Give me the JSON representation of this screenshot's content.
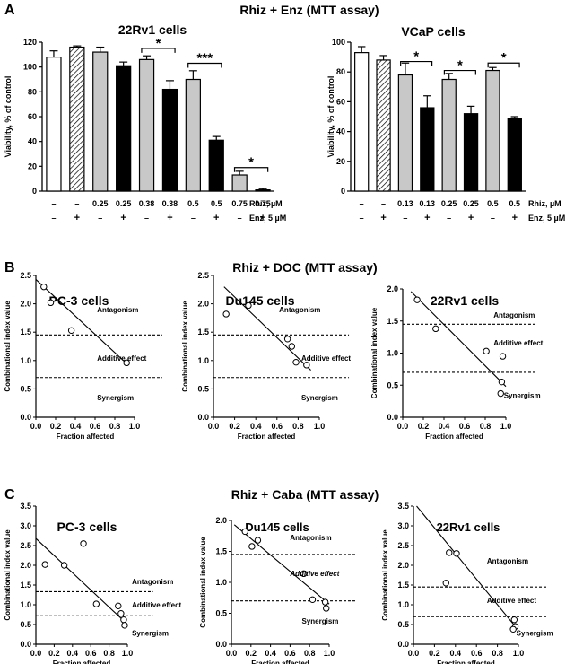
{
  "figure": {
    "panels": [
      {
        "letter": "A",
        "title": "Rhiz + Enz (MTT assay)"
      },
      {
        "letter": "B",
        "title": "Rhiz + DOC (MTT assay)"
      },
      {
        "letter": "C",
        "title": "Rhiz + Caba (MTT assay)"
      }
    ]
  },
  "chart_data": [
    {
      "id": "A1",
      "type": "bar",
      "panel": "A",
      "title": "22Rv1 cells",
      "ylabel": "Viability, % of control",
      "ylim": [
        0,
        120
      ],
      "yticks": [
        "0",
        "20",
        "40",
        "60",
        "80",
        "100",
        "120"
      ],
      "row_labels": [
        "Rhiz, µM",
        "Enz, 5 µM"
      ],
      "rhiz": [
        "–",
        "–",
        "0.25",
        "0.25",
        "0.38",
        "0.38",
        "0.5",
        "0.5",
        "0.75",
        "0.75"
      ],
      "enz": [
        "–",
        "+",
        "–",
        "+",
        "–",
        "+",
        "–",
        "+",
        "–",
        "+"
      ],
      "values": [
        108,
        116,
        112,
        101,
        106,
        82,
        90,
        41,
        13,
        1
      ],
      "errors": [
        5,
        1,
        4,
        3,
        3,
        7,
        7,
        3,
        3,
        1
      ],
      "fills": [
        "white",
        "hatched",
        "#c8c8c8",
        "#000000",
        "#c8c8c8",
        "#000000",
        "#c8c8c8",
        "#000000",
        "#c8c8c8",
        "#000000"
      ],
      "significance": [
        {
          "from": 4,
          "to": 5,
          "label": "*",
          "value": 115
        },
        {
          "from": 6,
          "to": 7,
          "label": "***",
          "value": 103
        },
        {
          "from": 8,
          "to": 9,
          "label": "*",
          "value": 19
        }
      ]
    },
    {
      "id": "A2",
      "type": "bar",
      "panel": "A",
      "title": "VCaP cells",
      "ylabel": "Viability, % of control",
      "ylim": [
        0,
        100
      ],
      "yticks": [
        "0",
        "20",
        "40",
        "60",
        "80",
        "100"
      ],
      "row_labels": [
        "Rhiz, µM",
        "Enz, 5 µM"
      ],
      "rhiz": [
        "–",
        "–",
        "0.13",
        "0.13",
        "0.25",
        "0.25",
        "0.5",
        "0.5"
      ],
      "enz": [
        "–",
        "+",
        "–",
        "+",
        "–",
        "+",
        "–",
        "+"
      ],
      "values": [
        93,
        88,
        78,
        56,
        75,
        52,
        81,
        49
      ],
      "errors": [
        4,
        3,
        8,
        8,
        4,
        5,
        2,
        1
      ],
      "fills": [
        "white",
        "hatched",
        "#c8c8c8",
        "#000000",
        "#c8c8c8",
        "#000000",
        "#c8c8c8",
        "#000000"
      ],
      "significance": [
        {
          "from": 2,
          "to": 3,
          "label": "*",
          "value": 87
        },
        {
          "from": 4,
          "to": 5,
          "label": "*",
          "value": 81
        },
        {
          "from": 6,
          "to": 7,
          "label": "*",
          "value": 86
        }
      ]
    },
    {
      "id": "B1",
      "type": "scatter",
      "panel": "B",
      "title": "PC-3 cells",
      "xlabel": "Fraction affected",
      "ylabel": "Combinational index value",
      "xlim": [
        0,
        1
      ],
      "ylim": [
        0,
        2.5
      ],
      "xticks": [
        "0.0",
        "0.2",
        "0.4",
        "0.6",
        "0.8",
        "1.0"
      ],
      "yticks": [
        "0.0",
        "0.5",
        "1.0",
        "1.5",
        "2.0",
        "2.5"
      ],
      "points": [
        [
          0.08,
          2.3
        ],
        [
          0.15,
          2.02
        ],
        [
          0.36,
          1.53
        ],
        [
          0.92,
          0.96
        ]
      ],
      "fit": [
        [
          0.0,
          2.43
        ],
        [
          0.93,
          0.93
        ]
      ],
      "thresholds": [
        1.45,
        0.7
      ],
      "regions": [
        {
          "text": "Antagonism",
          "x": 0.62,
          "y": 1.85
        },
        {
          "text": "Additive effect",
          "x": 0.62,
          "y": 1.0
        },
        {
          "text": "Synergism",
          "x": 0.62,
          "y": 0.3
        }
      ]
    },
    {
      "id": "B2",
      "type": "scatter",
      "panel": "B",
      "title": "Du145 cells",
      "xlabel": "Fraction affected",
      "ylabel": "Combinational index value",
      "xlim": [
        0,
        1
      ],
      "ylim": [
        0,
        2.5
      ],
      "xticks": [
        "0.0",
        "0.2",
        "0.4",
        "0.6",
        "0.8",
        "1.0"
      ],
      "yticks": [
        "0.0",
        "0.5",
        "1.0",
        "1.5",
        "2.0",
        "2.5"
      ],
      "points": [
        [
          0.12,
          1.82
        ],
        [
          0.33,
          1.97
        ],
        [
          0.7,
          1.38
        ],
        [
          0.74,
          1.25
        ],
        [
          0.78,
          0.97
        ],
        [
          0.88,
          0.92
        ]
      ],
      "fit": [
        [
          0.1,
          2.3
        ],
        [
          0.92,
          0.83
        ]
      ],
      "thresholds": [
        1.45,
        0.7
      ],
      "regions": [
        {
          "text": "Antagonism",
          "x": 0.62,
          "y": 1.85
        },
        {
          "text": "Additive effect",
          "x": 0.83,
          "y": 1.0
        },
        {
          "text": "Synergism",
          "x": 0.83,
          "y": 0.3
        }
      ]
    },
    {
      "id": "B3",
      "type": "scatter",
      "panel": "B",
      "title": "22Rv1 cells",
      "xlabel": "Fraction affected",
      "ylabel": "Combinational index value",
      "xlim": [
        0,
        1
      ],
      "ylim": [
        0,
        2.0
      ],
      "xticks": [
        "0.0",
        "0.2",
        "0.4",
        "0.6",
        "0.8",
        "1.0"
      ],
      "yticks": [
        "0.0",
        "0.5",
        "1.0",
        "1.5",
        "2.0"
      ],
      "points": [
        [
          0.14,
          1.83
        ],
        [
          0.32,
          1.38
        ],
        [
          0.81,
          1.03
        ],
        [
          0.97,
          0.95
        ],
        [
          0.96,
          0.55
        ],
        [
          0.95,
          0.37
        ]
      ],
      "fit": [
        [
          0.08,
          1.96
        ],
        [
          1.0,
          0.48
        ]
      ],
      "thresholds": [
        1.45,
        0.7
      ],
      "regions": [
        {
          "text": "Antagonism",
          "x": 0.88,
          "y": 1.55
        },
        {
          "text": "Additive effect",
          "x": 0.88,
          "y": 1.12
        },
        {
          "text": "Synergism",
          "x": 0.98,
          "y": 0.3
        }
      ]
    },
    {
      "id": "C1",
      "type": "scatter",
      "panel": "C",
      "title": "PC-3 cells",
      "xlabel": "Fraction affected",
      "ylabel": "Combinational index value",
      "xlim": [
        0,
        1
      ],
      "ylim": [
        0,
        3.5
      ],
      "xticks": [
        "0.0",
        "0.2",
        "0.4",
        "0.6",
        "0.8",
        "1.0"
      ],
      "yticks": [
        "0.0",
        "0.5",
        "1.0",
        "1.5",
        "2.0",
        "2.5",
        "3.0",
        "3.5"
      ],
      "points": [
        [
          0.1,
          2.02
        ],
        [
          0.31,
          2.0
        ],
        [
          0.52,
          2.55
        ],
        [
          0.66,
          1.02
        ],
        [
          0.9,
          0.97
        ],
        [
          0.93,
          0.78
        ],
        [
          0.96,
          0.62
        ],
        [
          0.97,
          0.48
        ]
      ],
      "fit": [
        [
          0.0,
          2.68
        ],
        [
          0.98,
          0.55
        ]
      ],
      "thresholds": [
        1.33,
        0.72
      ],
      "regions": [
        {
          "text": "Antagonism",
          "x": 1.05,
          "y": 1.52
        },
        {
          "text": "Additive effect",
          "x": 1.05,
          "y": 0.93
        },
        {
          "text": "Synergism",
          "x": 1.05,
          "y": 0.22
        }
      ]
    },
    {
      "id": "C2",
      "type": "scatter",
      "panel": "C",
      "title": "Du145 cells",
      "xlabel": "Fraction affected",
      "ylabel": "Combinational index value",
      "xlim": [
        0,
        1
      ],
      "ylim": [
        0,
        2.0
      ],
      "xticks": [
        "0.0",
        "0.2",
        "0.4",
        "0.6",
        "0.8",
        "1.0"
      ],
      "yticks": [
        "0.0",
        "0.5",
        "1.0",
        "1.5",
        "2.0"
      ],
      "points": [
        [
          0.14,
          1.82
        ],
        [
          0.21,
          1.58
        ],
        [
          0.27,
          1.68
        ],
        [
          0.74,
          1.14
        ],
        [
          0.83,
          0.72
        ],
        [
          0.96,
          0.68
        ],
        [
          0.97,
          0.58
        ]
      ],
      "fit": [
        [
          0.03,
          1.93
        ],
        [
          1.0,
          0.65
        ]
      ],
      "thresholds": [
        1.45,
        0.7
      ],
      "regions": [
        {
          "text": "Antagonism",
          "x": 0.6,
          "y": 1.68
        },
        {
          "text": "Additive effect",
          "x": 0.6,
          "y": 1.1,
          "italic": true
        },
        {
          "text": "Synergism",
          "x": 0.72,
          "y": 0.33
        }
      ]
    },
    {
      "id": "C3",
      "type": "scatter",
      "panel": "C",
      "title": "22Rv1 cells",
      "xlabel": "Fraction affected",
      "ylabel": "Combinational index value",
      "xlim": [
        0,
        1
      ],
      "ylim": [
        0,
        3.5
      ],
      "xticks": [
        "0.0",
        "0.2",
        "0.4",
        "0.6",
        "0.8",
        "1.0"
      ],
      "yticks": [
        "0.0",
        "0.5",
        "1.0",
        "1.5",
        "2.0",
        "2.5",
        "3.0",
        "3.5"
      ],
      "points": [
        [
          0.31,
          1.55
        ],
        [
          0.34,
          2.32
        ],
        [
          0.41,
          2.3
        ],
        [
          0.96,
          0.62
        ],
        [
          0.97,
          0.45
        ],
        [
          0.95,
          0.38
        ]
      ],
      "fit": [
        [
          0.03,
          3.5
        ],
        [
          0.97,
          0.45
        ]
      ],
      "thresholds": [
        1.45,
        0.7
      ],
      "regions": [
        {
          "text": "Antagonism",
          "x": 0.7,
          "y": 2.05
        },
        {
          "text": "Additive effect",
          "x": 0.7,
          "y": 1.05
        },
        {
          "text": "Synergism",
          "x": 0.98,
          "y": 0.22
        }
      ]
    }
  ]
}
